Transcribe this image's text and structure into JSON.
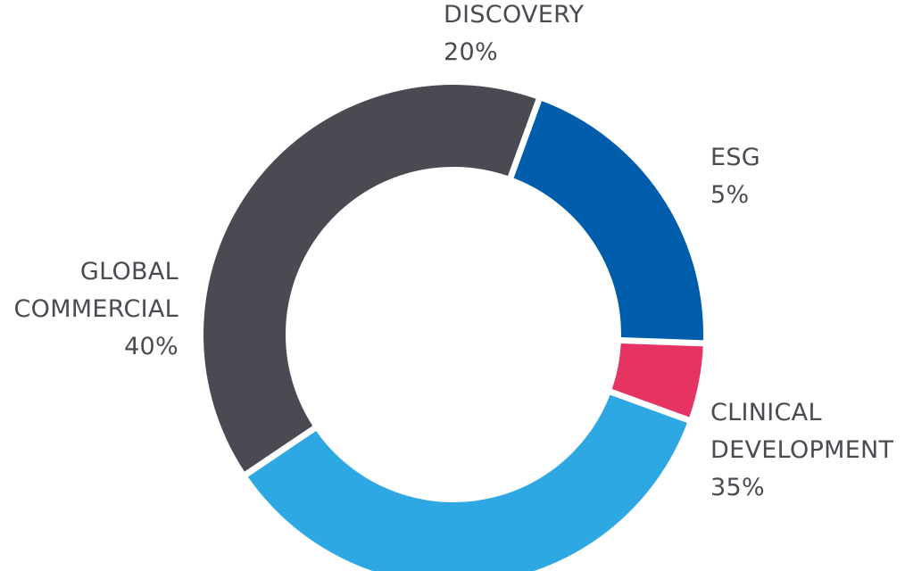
{
  "chart_data": {
    "type": "pie",
    "style": "donut",
    "title": "",
    "slices": [
      {
        "name": "DISCOVERY",
        "label_lines": [
          "DISCOVERY"
        ],
        "pct_label": "20%",
        "value": 20,
        "color": "#005dac"
      },
      {
        "name": "ESG",
        "label_lines": [
          "ESG"
        ],
        "pct_label": "5%",
        "value": 5,
        "color": "#e63462"
      },
      {
        "name": "CLINICAL DEVELOPMENT",
        "label_lines": [
          "CLINICAL",
          "DEVELOPMENT"
        ],
        "pct_label": "35%",
        "value": 35,
        "color": "#2ea8e2"
      },
      {
        "name": "GLOBAL COMMERCIAL",
        "label_lines": [
          "GLOBAL",
          "COMMERCIAL"
        ],
        "pct_label": "40%",
        "value": 40,
        "color": "#4b4a52"
      }
    ]
  }
}
